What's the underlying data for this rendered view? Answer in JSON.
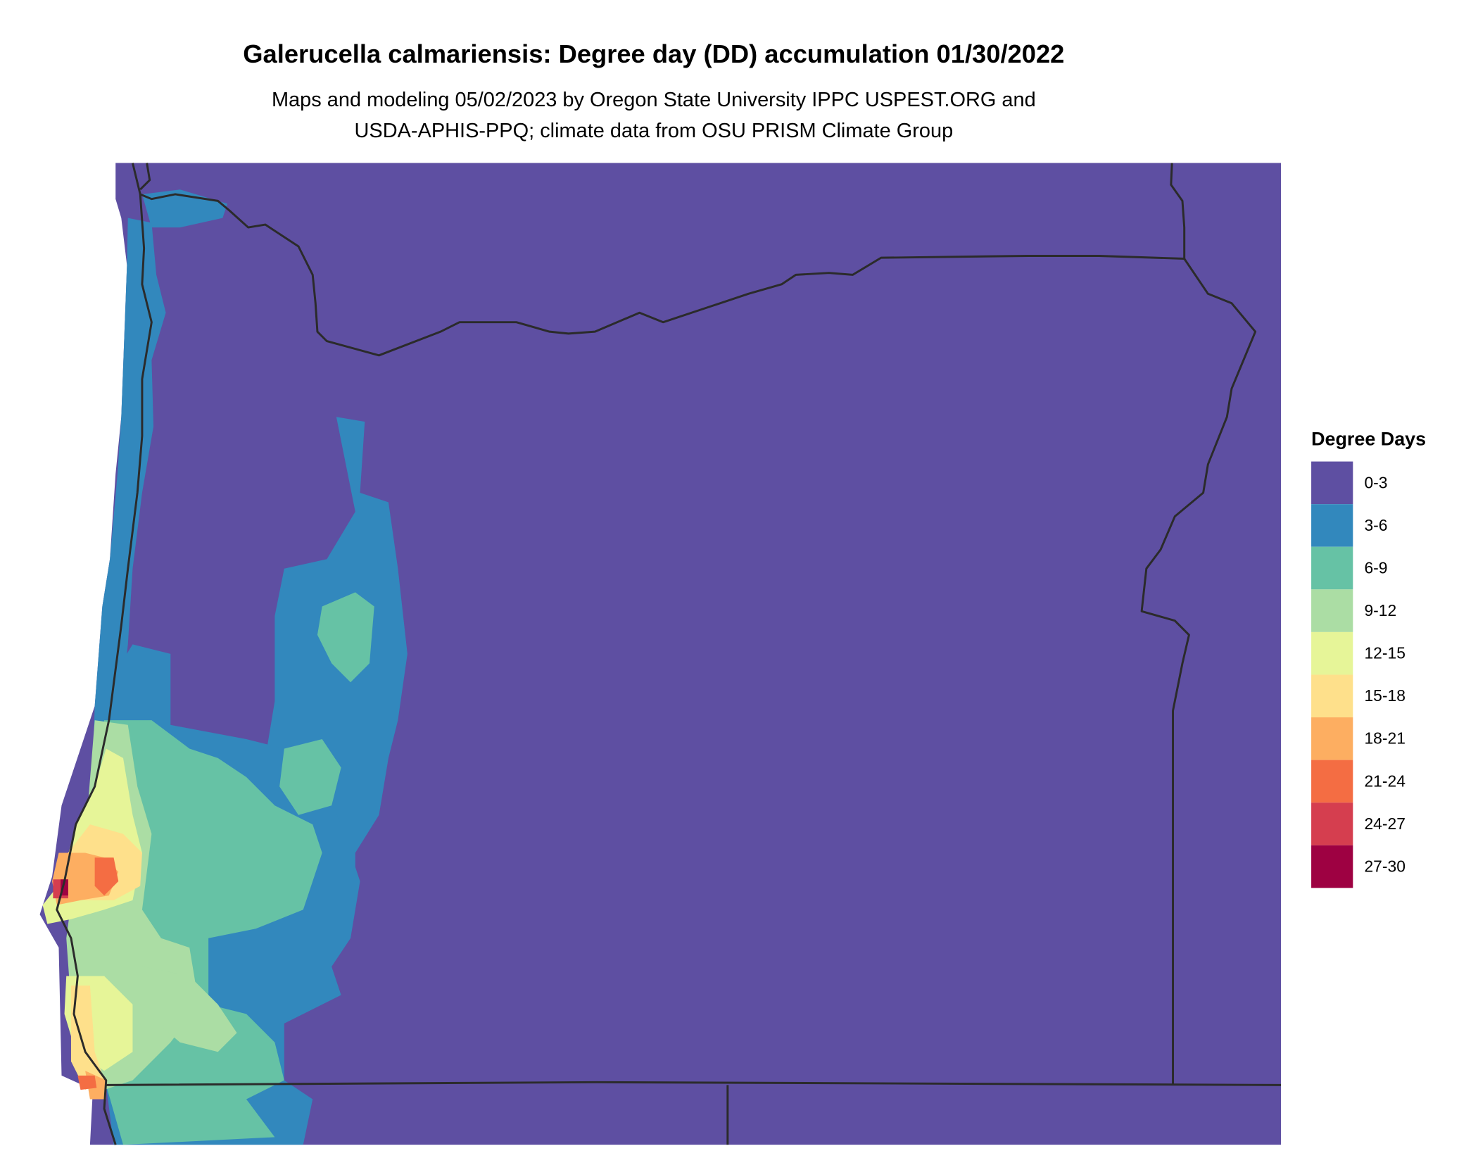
{
  "title": "Galerucella calmariensis: Degree day (DD) accumulation 01/30/2022",
  "subtitle_line1": "Maps and modeling 05/02/2023 by Oregon State University IPPC USPEST.ORG and",
  "subtitle_line2": "USDA-APHIS-PPQ; climate data from OSU PRISM Climate Group",
  "legend": {
    "title": "Degree Days",
    "items": [
      {
        "label": "0-3",
        "color": "#5E4FA2"
      },
      {
        "label": "3-6",
        "color": "#3288BD"
      },
      {
        "label": "6-9",
        "color": "#66C2A5"
      },
      {
        "label": "9-12",
        "color": "#ABDDA4"
      },
      {
        "label": "12-15",
        "color": "#E6F598"
      },
      {
        "label": "15-18",
        "color": "#FEE08B"
      },
      {
        "label": "18-21",
        "color": "#FDAE61"
      },
      {
        "label": "21-24",
        "color": "#F46D43"
      },
      {
        "label": "24-27",
        "color": "#D53E4F"
      },
      {
        "label": "27-30",
        "color": "#9E0142"
      }
    ]
  }
}
